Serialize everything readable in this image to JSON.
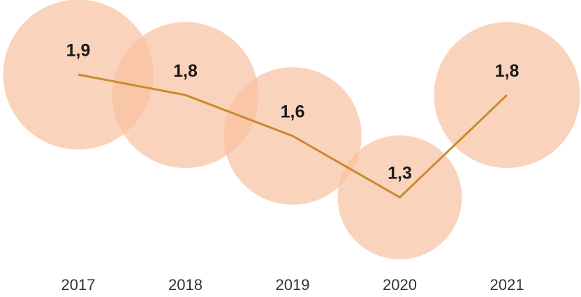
{
  "chart_data": {
    "type": "line",
    "categories": [
      "2017",
      "2018",
      "2019",
      "2020",
      "2021"
    ],
    "values": [
      1.9,
      1.8,
      1.6,
      1.3,
      1.8
    ],
    "value_labels": [
      "1,9",
      "1,8",
      "1,6",
      "1,3",
      "1,8"
    ],
    "color": "#c98a2e",
    "bubble_color": "#f8c0a0"
  }
}
